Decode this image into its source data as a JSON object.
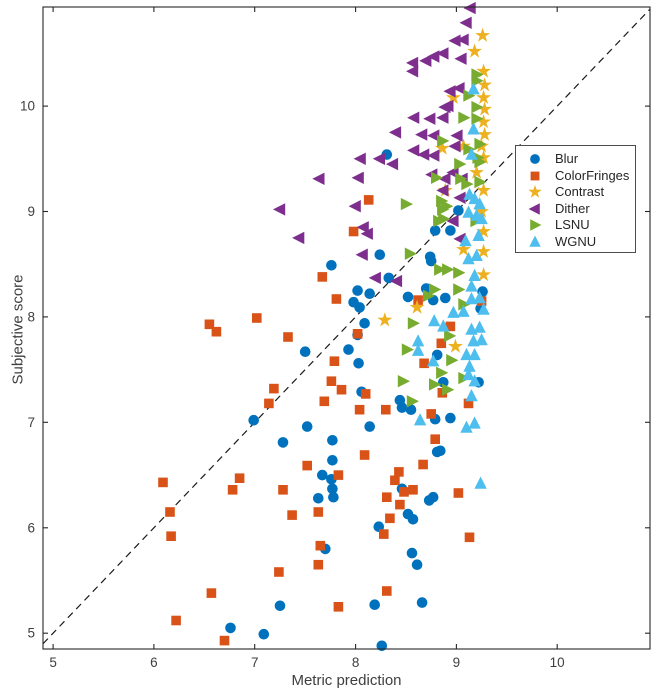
{
  "figure": {
    "xlabel": "Metric prediction",
    "ylabel": "Subjective score"
  },
  "legend": {
    "position": "inside-top-right",
    "border_color": "#4d4d4d"
  },
  "palette": {
    "blue": "#0072BD",
    "orange": "#D95319",
    "yellow": "#EDB120",
    "purple": "#7E2F8E",
    "green": "#77AC30",
    "cyan": "#4DBEEE",
    "axis": "#262626",
    "tick_text": "#3f3f3f",
    "identity_line": "#1a1a1a"
  },
  "chart_data": {
    "type": "scatter",
    "title": "",
    "xlabel": "Metric prediction",
    "ylabel": "Subjective score",
    "xlim": [
      4.9,
      10.92
    ],
    "ylim": [
      4.85,
      10.94
    ],
    "xticks": [
      5,
      6,
      7,
      8,
      9,
      10
    ],
    "yticks": [
      5,
      6,
      7,
      8,
      9,
      10
    ],
    "grid": false,
    "identity_line": {
      "style": "dashed",
      "from": [
        4.9,
        4.9
      ],
      "to": [
        10.92,
        10.92
      ]
    },
    "legend_position": "upper right inside",
    "series": [
      {
        "name": "Blur",
        "marker": "circle",
        "color": "#0072BD",
        "points": [
          [
            8.31,
            9.54
          ],
          [
            9.02,
            9.01
          ],
          [
            8.79,
            8.82
          ],
          [
            8.94,
            8.82
          ],
          [
            8.74,
            8.57
          ],
          [
            8.24,
            8.59
          ],
          [
            7.76,
            8.49
          ],
          [
            8.33,
            8.37
          ],
          [
            8.02,
            8.25
          ],
          [
            8.14,
            8.22
          ],
          [
            7.98,
            8.14
          ],
          [
            8.04,
            8.09
          ],
          [
            8.52,
            8.19
          ],
          [
            8.7,
            8.27
          ],
          [
            8.75,
            8.53
          ],
          [
            8.77,
            8.16
          ],
          [
            8.89,
            8.18
          ],
          [
            9.24,
            8.08
          ],
          [
            9.26,
            8.24
          ],
          [
            8.09,
            7.94
          ],
          [
            8.02,
            7.83
          ],
          [
            7.5,
            7.67
          ],
          [
            7.93,
            7.69
          ],
          [
            8.03,
            7.56
          ],
          [
            8.81,
            7.64
          ],
          [
            8.06,
            7.29
          ],
          [
            8.44,
            7.21
          ],
          [
            8.46,
            7.14
          ],
          [
            8.55,
            7.12
          ],
          [
            8.87,
            7.38
          ],
          [
            9.22,
            7.38
          ],
          [
            6.99,
            7.02
          ],
          [
            7.52,
            6.96
          ],
          [
            8.14,
            6.96
          ],
          [
            8.79,
            7.03
          ],
          [
            8.94,
            7.04
          ],
          [
            7.28,
            6.81
          ],
          [
            7.77,
            6.83
          ],
          [
            8.84,
            6.73
          ],
          [
            8.81,
            6.72
          ],
          [
            7.77,
            6.64
          ],
          [
            7.67,
            6.5
          ],
          [
            7.76,
            6.46
          ],
          [
            7.77,
            6.37
          ],
          [
            7.78,
            6.29
          ],
          [
            7.63,
            6.28
          ],
          [
            8.46,
            6.37
          ],
          [
            8.77,
            6.29
          ],
          [
            8.52,
            6.13
          ],
          [
            8.57,
            6.08
          ],
          [
            8.23,
            6.01
          ],
          [
            8.73,
            6.26
          ],
          [
            7.7,
            5.8
          ],
          [
            8.56,
            5.76
          ],
          [
            8.61,
            5.65
          ],
          [
            7.25,
            5.26
          ],
          [
            8.19,
            5.27
          ],
          [
            8.66,
            5.29
          ],
          [
            6.76,
            5.05
          ],
          [
            7.09,
            4.99
          ],
          [
            8.26,
            4.88
          ]
        ]
      },
      {
        "name": "ColorFringes",
        "marker": "square",
        "color": "#D95319",
        "points": [
          [
            8.13,
            9.11
          ],
          [
            7.98,
            8.81
          ],
          [
            7.67,
            8.38
          ],
          [
            7.81,
            8.17
          ],
          [
            8.62,
            8.16
          ],
          [
            7.02,
            7.99
          ],
          [
            6.55,
            7.93
          ],
          [
            6.62,
            7.86
          ],
          [
            7.33,
            7.81
          ],
          [
            8.02,
            7.84
          ],
          [
            9.25,
            8.15
          ],
          [
            8.94,
            7.91
          ],
          [
            8.85,
            7.75
          ],
          [
            7.79,
            7.58
          ],
          [
            7.76,
            7.39
          ],
          [
            7.86,
            7.31
          ],
          [
            7.19,
            7.32
          ],
          [
            7.14,
            7.18
          ],
          [
            7.69,
            7.2
          ],
          [
            8.1,
            7.27
          ],
          [
            8.04,
            7.12
          ],
          [
            8.3,
            7.12
          ],
          [
            8.68,
            7.56
          ],
          [
            8.86,
            7.28
          ],
          [
            9.12,
            7.18
          ],
          [
            8.75,
            7.08
          ],
          [
            8.79,
            6.84
          ],
          [
            7.52,
            6.59
          ],
          [
            7.28,
            6.36
          ],
          [
            7.83,
            6.5
          ],
          [
            8.09,
            6.69
          ],
          [
            8.67,
            6.6
          ],
          [
            8.43,
            6.53
          ],
          [
            8.39,
            6.45
          ],
          [
            8.48,
            6.34
          ],
          [
            8.57,
            6.36
          ],
          [
            8.31,
            6.29
          ],
          [
            8.44,
            6.22
          ],
          [
            6.09,
            6.43
          ],
          [
            6.85,
            6.47
          ],
          [
            6.78,
            6.36
          ],
          [
            6.16,
            6.15
          ],
          [
            7.37,
            6.12
          ],
          [
            7.63,
            6.15
          ],
          [
            8.34,
            6.09
          ],
          [
            8.28,
            5.94
          ],
          [
            9.02,
            6.33
          ],
          [
            9.13,
            5.91
          ],
          [
            6.17,
            5.92
          ],
          [
            7.65,
            5.83
          ],
          [
            7.63,
            5.65
          ],
          [
            7.24,
            5.58
          ],
          [
            6.57,
            5.38
          ],
          [
            8.31,
            5.4
          ],
          [
            7.83,
            5.25
          ],
          [
            6.22,
            5.12
          ],
          [
            6.7,
            4.93
          ]
        ]
      },
      {
        "name": "Contrast",
        "marker": "star",
        "color": "#EDB120",
        "points": [
          [
            9.26,
            10.67
          ],
          [
            9.18,
            10.52
          ],
          [
            9.27,
            10.33
          ],
          [
            9.28,
            10.2
          ],
          [
            9.27,
            10.08
          ],
          [
            8.97,
            10.08
          ],
          [
            9.28,
            9.97
          ],
          [
            9.27,
            9.85
          ],
          [
            9.28,
            9.73
          ],
          [
            9.25,
            9.62
          ],
          [
            9.07,
            9.62
          ],
          [
            8.86,
            9.6
          ],
          [
            9.27,
            9.51
          ],
          [
            9.2,
            9.37
          ],
          [
            9.27,
            9.2
          ],
          [
            8.89,
            9.2
          ],
          [
            9.25,
            9.0
          ],
          [
            9.27,
            8.81
          ],
          [
            9.07,
            8.64
          ],
          [
            9.27,
            8.62
          ],
          [
            9.27,
            8.4
          ],
          [
            8.61,
            8.09
          ],
          [
            8.29,
            7.97
          ],
          [
            8.99,
            7.72
          ]
        ]
      },
      {
        "name": "Dither",
        "marker": "triangle-left",
        "color": "#7E2F8E",
        "points": [
          [
            9.14,
            10.93
          ],
          [
            9.1,
            10.79
          ],
          [
            9.07,
            10.63
          ],
          [
            8.99,
            10.62
          ],
          [
            8.87,
            10.5
          ],
          [
            8.78,
            10.47
          ],
          [
            9.05,
            10.45
          ],
          [
            8.57,
            10.41
          ],
          [
            8.7,
            10.43
          ],
          [
            8.57,
            10.33
          ],
          [
            9.03,
            10.17
          ],
          [
            8.94,
            10.14
          ],
          [
            8.92,
            10.0
          ],
          [
            8.89,
            9.99
          ],
          [
            8.58,
            9.89
          ],
          [
            8.74,
            9.88
          ],
          [
            8.87,
            9.89
          ],
          [
            9.01,
            9.72
          ],
          [
            8.99,
            9.62
          ],
          [
            8.4,
            9.75
          ],
          [
            8.66,
            9.73
          ],
          [
            8.78,
            9.72
          ],
          [
            8.58,
            9.58
          ],
          [
            8.68,
            9.54
          ],
          [
            8.78,
            9.53
          ],
          [
            8.05,
            9.5
          ],
          [
            8.24,
            9.5
          ],
          [
            8.37,
            9.45
          ],
          [
            7.64,
            9.31
          ],
          [
            8.03,
            9.32
          ],
          [
            8.76,
            9.35
          ],
          [
            8.89,
            9.31
          ],
          [
            8.97,
            9.37
          ],
          [
            9.06,
            9.31
          ],
          [
            8.87,
            9.2
          ],
          [
            9.04,
            9.13
          ],
          [
            7.25,
            9.02
          ],
          [
            8.0,
            9.05
          ],
          [
            8.08,
            8.85
          ],
          [
            8.97,
            8.91
          ],
          [
            9.04,
            8.74
          ],
          [
            7.44,
            8.75
          ],
          [
            8.12,
            8.79
          ],
          [
            8.07,
            8.59
          ],
          [
            8.2,
            8.37
          ],
          [
            8.41,
            8.34
          ]
        ]
      },
      {
        "name": "LSNU",
        "marker": "triangle-right",
        "color": "#77AC30",
        "points": [
          [
            9.2,
            10.3
          ],
          [
            9.2,
            10.24
          ],
          [
            9.12,
            10.1
          ],
          [
            9.2,
            9.99
          ],
          [
            9.07,
            9.89
          ],
          [
            9.2,
            9.88
          ],
          [
            8.86,
            9.67
          ],
          [
            9.23,
            9.64
          ],
          [
            9.12,
            9.59
          ],
          [
            9.21,
            9.51
          ],
          [
            9.23,
            9.47
          ],
          [
            9.03,
            9.45
          ],
          [
            8.8,
            9.32
          ],
          [
            9.04,
            9.31
          ],
          [
            9.1,
            9.26
          ],
          [
            9.23,
            9.28
          ],
          [
            8.85,
            9.1
          ],
          [
            8.5,
            9.07
          ],
          [
            8.9,
            9.05
          ],
          [
            8.86,
            9.02
          ],
          [
            8.82,
            8.91
          ],
          [
            9.19,
            8.91
          ],
          [
            8.87,
            8.93
          ],
          [
            8.54,
            8.6
          ],
          [
            8.83,
            8.45
          ],
          [
            8.91,
            8.45
          ],
          [
            9.02,
            8.42
          ],
          [
            8.78,
            8.26
          ],
          [
            9.02,
            8.26
          ],
          [
            8.72,
            8.2
          ],
          [
            9.07,
            8.12
          ],
          [
            8.93,
            7.82
          ],
          [
            8.57,
            7.94
          ],
          [
            8.95,
            7.59
          ],
          [
            8.51,
            7.69
          ],
          [
            8.85,
            7.47
          ],
          [
            8.78,
            7.36
          ],
          [
            8.91,
            7.31
          ],
          [
            9.07,
            7.42
          ],
          [
            8.47,
            7.39
          ],
          [
            8.56,
            7.2
          ]
        ]
      },
      {
        "name": "WGNU",
        "marker": "triangle-up",
        "color": "#4DBEEE",
        "points": [
          [
            9.17,
            10.16
          ],
          [
            9.17,
            9.78
          ],
          [
            9.15,
            9.54
          ],
          [
            9.13,
            9.16
          ],
          [
            9.18,
            9.12
          ],
          [
            9.23,
            9.07
          ],
          [
            9.12,
            8.99
          ],
          [
            9.2,
            8.96
          ],
          [
            9.25,
            8.93
          ],
          [
            9.22,
            8.77
          ],
          [
            9.09,
            8.72
          ],
          [
            9.2,
            8.58
          ],
          [
            9.12,
            8.55
          ],
          [
            9.18,
            8.39
          ],
          [
            9.15,
            8.29
          ],
          [
            9.15,
            8.17
          ],
          [
            9.23,
            8.18
          ],
          [
            9.27,
            8.07
          ],
          [
            8.97,
            8.04
          ],
          [
            9.07,
            8.05
          ],
          [
            8.78,
            7.96
          ],
          [
            8.87,
            7.91
          ],
          [
            9.15,
            7.88
          ],
          [
            9.23,
            7.9
          ],
          [
            9.17,
            7.77
          ],
          [
            9.25,
            7.78
          ],
          [
            8.62,
            7.77
          ],
          [
            8.62,
            7.68
          ],
          [
            9.1,
            7.64
          ],
          [
            9.18,
            7.64
          ],
          [
            8.77,
            7.58
          ],
          [
            9.13,
            7.53
          ],
          [
            9.12,
            7.45
          ],
          [
            9.18,
            7.39
          ],
          [
            9.15,
            7.25
          ],
          [
            9.18,
            6.99
          ],
          [
            9.1,
            6.95
          ],
          [
            8.64,
            7.02
          ],
          [
            9.24,
            6.42
          ]
        ]
      }
    ]
  }
}
